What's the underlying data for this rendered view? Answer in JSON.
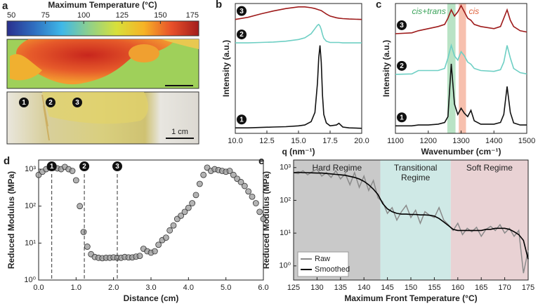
{
  "chart_data": [
    {
      "type": "heatmap",
      "panel": "a",
      "title": "Maximum Temperature (°C)",
      "xlim": [
        50,
        175
      ],
      "xticks": [
        50,
        75,
        100,
        125,
        150,
        175
      ],
      "colormap": [
        "#2a2f8e",
        "#2f6fc0",
        "#3fb8e8",
        "#8fd08a",
        "#d8e03a",
        "#f6b326",
        "#e8502a",
        "#a31d1d"
      ],
      "markers": [
        "1",
        "2",
        "3"
      ],
      "scale_bar_label": "1 cm"
    },
    {
      "type": "line",
      "panel": "b",
      "xlabel": "q (nm⁻¹)",
      "ylabel": "Intensity (a.u.)",
      "xlim": [
        10,
        20
      ],
      "ylim": [
        0,
        3.1
      ],
      "xticks": [
        {
          "value": 10,
          "label": "10.0"
        },
        {
          "value": 12.5,
          "label": "12.5"
        },
        {
          "value": 15,
          "label": "15.0"
        },
        {
          "value": 17.5,
          "label": "17.5"
        },
        {
          "value": 20,
          "label": "20.0"
        }
      ],
      "x": [
        10,
        11,
        12,
        13,
        14,
        15,
        15.5,
        16,
        16.3,
        16.5,
        16.6,
        16.7,
        16.8,
        16.9,
        17,
        17.2,
        17.5,
        18,
        18.2,
        18.5,
        19,
        20
      ],
      "series": [
        {
          "name": "1",
          "color": "#111111",
          "values": [
            0.13,
            0.13,
            0.14,
            0.15,
            0.16,
            0.18,
            0.2,
            0.28,
            0.5,
            1.2,
            1.8,
            2.1,
            1.7,
            0.9,
            0.45,
            0.25,
            0.18,
            0.2,
            0.24,
            0.15,
            0.13,
            0.12
          ]
        },
        {
          "name": "2",
          "color": "#6ecfc4",
          "values": [
            2.16,
            2.16,
            2.17,
            2.18,
            2.2,
            2.24,
            2.28,
            2.38,
            2.5,
            2.58,
            2.6,
            2.56,
            2.48,
            2.36,
            2.27,
            2.2,
            2.17,
            2.17,
            2.17,
            2.16,
            2.16,
            2.16
          ]
        },
        {
          "name": "3",
          "color": "#9e1b1b",
          "values": [
            2.72,
            2.77,
            2.85,
            2.92,
            2.98,
            3.02,
            3.02,
            3.0,
            2.98,
            2.96,
            2.95,
            2.94,
            2.93,
            2.91,
            2.89,
            2.85,
            2.8,
            2.76,
            2.75,
            2.74,
            2.73,
            2.72
          ]
        }
      ]
    },
    {
      "type": "line",
      "panel": "c",
      "xlabel": "Wavenumber (cm⁻¹)",
      "ylabel": "Intensity (a.u.)",
      "xlim": [
        1100,
        1500
      ],
      "ylim": [
        0,
        3.1
      ],
      "xticks": [
        1100,
        1200,
        1300,
        1400,
        1500
      ],
      "bands": [
        {
          "label": "cis+trans",
          "range": [
            1258,
            1283
          ],
          "color": "#a8dcb6",
          "text_color": "#3aa35a"
        },
        {
          "label": "cis",
          "range": [
            1293,
            1315
          ],
          "color": "#f5b09a",
          "text_color": "#e0603a"
        }
      ],
      "x": [
        1100,
        1150,
        1170,
        1200,
        1230,
        1250,
        1260,
        1270,
        1280,
        1290,
        1300,
        1310,
        1320,
        1330,
        1340,
        1360,
        1400,
        1420,
        1430,
        1440,
        1450,
        1460,
        1480,
        1500
      ],
      "series": [
        {
          "name": "1",
          "color": "#111111",
          "values": [
            0.18,
            0.18,
            0.2,
            0.2,
            0.22,
            0.26,
            0.4,
            1.66,
            0.7,
            0.45,
            0.6,
            0.48,
            0.4,
            0.55,
            0.3,
            0.22,
            0.22,
            0.26,
            0.45,
            1.12,
            0.5,
            0.25,
            0.2,
            0.2
          ]
        },
        {
          "name": "2",
          "color": "#6ecfc4",
          "values": [
            1.41,
            1.42,
            1.5,
            1.5,
            1.5,
            1.55,
            1.8,
            2.1,
            1.85,
            1.75,
            1.95,
            1.85,
            1.7,
            1.65,
            1.55,
            1.5,
            1.48,
            1.52,
            1.7,
            2.1,
            1.8,
            1.55,
            1.45,
            1.42
          ]
        },
        {
          "name": "3",
          "color": "#9e1b1b",
          "values": [
            2.38,
            2.4,
            2.45,
            2.5,
            2.55,
            2.6,
            2.75,
            2.95,
            2.8,
            2.9,
            3.05,
            2.9,
            2.75,
            2.7,
            2.6,
            2.55,
            2.5,
            2.55,
            2.75,
            2.95,
            2.7,
            2.55,
            2.45,
            2.42
          ]
        }
      ]
    },
    {
      "type": "scatter",
      "panel": "d",
      "xlabel": "Distance (cm)",
      "ylabel": "Reduced Modulus (MPa)",
      "xlim": [
        0,
        6
      ],
      "ylim": [
        1,
        1770
      ],
      "ylog": true,
      "xticks": [
        {
          "value": 0,
          "label": "0.0"
        },
        {
          "value": 1,
          "label": "1.0"
        },
        {
          "value": 2,
          "label": "2.0"
        },
        {
          "value": 3,
          "label": "3.0"
        },
        {
          "value": 4,
          "label": "4.0"
        },
        {
          "value": 5,
          "label": "5.0"
        },
        {
          "value": 6,
          "label": "6.0"
        }
      ],
      "yticks": [
        {
          "value": 1,
          "label": "10⁰"
        },
        {
          "value": 10,
          "label": "10¹"
        },
        {
          "value": 100,
          "label": "10²"
        },
        {
          "value": 1000,
          "label": "10³"
        }
      ],
      "vlines": [
        {
          "x": 0.35,
          "label": "1"
        },
        {
          "x": 1.22,
          "label": "2"
        },
        {
          "x": 2.1,
          "label": "3"
        }
      ],
      "color": "#9a9a9a",
      "x": [
        0,
        0.1,
        0.2,
        0.3,
        0.4,
        0.5,
        0.6,
        0.7,
        0.8,
        0.9,
        1,
        1.1,
        1.2,
        1.3,
        1.4,
        1.5,
        1.6,
        1.7,
        1.8,
        1.9,
        2,
        2.1,
        2.2,
        2.3,
        2.4,
        2.5,
        2.6,
        2.7,
        2.8,
        2.9,
        3,
        3.1,
        3.2,
        3.3,
        3.4,
        3.5,
        3.6,
        3.7,
        3.8,
        3.9,
        4,
        4.1,
        4.2,
        4.3,
        4.4,
        4.5,
        4.6,
        4.7,
        4.8,
        4.9,
        5,
        5.1,
        5.2,
        5.3,
        5.4,
        5.5,
        5.6,
        5.7,
        5.8,
        5.9,
        6
      ],
      "values": [
        700,
        850,
        1000,
        1100,
        1100,
        1050,
        1000,
        1150,
        1000,
        900,
        500,
        100,
        20,
        8,
        5,
        4.2,
        4,
        3.9,
        4,
        4,
        4.1,
        4,
        4,
        4.2,
        4.1,
        4.1,
        4.3,
        4.5,
        7,
        6,
        5.5,
        6,
        9,
        12,
        14,
        22,
        30,
        45,
        55,
        70,
        90,
        120,
        200,
        400,
        700,
        1100,
        900,
        1000,
        950,
        900,
        850,
        900,
        700,
        550,
        450,
        350,
        250,
        180,
        120,
        70,
        45
      ]
    },
    {
      "type": "line",
      "panel": "e",
      "xlabel": "Maximum Front Temperature (°C)",
      "ylabel": "Reduced Modulus (MPa)",
      "xlim": [
        125,
        175
      ],
      "ylim": [
        0.37,
        1700
      ],
      "ylog": true,
      "xticks": [
        125,
        130,
        135,
        140,
        145,
        150,
        155,
        160,
        165,
        170,
        175
      ],
      "yticks": [
        {
          "value": 1,
          "label": "10⁰"
        },
        {
          "value": 10,
          "label": "10¹"
        },
        {
          "value": 100,
          "label": "10²"
        },
        {
          "value": 1000,
          "label": "10³"
        }
      ],
      "regions": [
        {
          "label": [
            "Hard Regime"
          ],
          "range": [
            125,
            143.5
          ],
          "color": "#c9c9c9"
        },
        {
          "label": [
            "Transitional",
            "Regime"
          ],
          "range": [
            143.5,
            158.5
          ],
          "color": "#cfe9e6"
        },
        {
          "label": [
            "Soft Regime"
          ],
          "range": [
            158.5,
            175
          ],
          "color": "#e9d2d4"
        }
      ],
      "legend": "lower left",
      "x": [
        125,
        126,
        127,
        128,
        129,
        130,
        131,
        132,
        133,
        134,
        135,
        136,
        137,
        138,
        139,
        140,
        141,
        142,
        143,
        144,
        145,
        146,
        147,
        148,
        149,
        150,
        151,
        152,
        153,
        154,
        155,
        156,
        157,
        158,
        159,
        160,
        161,
        162,
        163,
        164,
        165,
        166,
        167,
        168,
        169,
        170,
        171,
        172,
        173,
        174,
        175
      ],
      "series": [
        {
          "name": "Raw",
          "color": "#8a8a8a",
          "values": [
            700,
            650,
            800,
            600,
            750,
            900,
            550,
            700,
            500,
            800,
            450,
            650,
            300,
            700,
            250,
            550,
            200,
            400,
            120,
            90,
            40,
            60,
            25,
            45,
            70,
            30,
            50,
            20,
            45,
            35,
            30,
            60,
            25,
            18,
            12,
            20,
            9,
            14,
            11,
            15,
            8,
            13,
            16,
            12,
            18,
            10,
            14,
            8,
            12,
            0.6,
            3
          ]
        },
        {
          "name": "Smoothed",
          "color": "#000000",
          "values": [
            700,
            720,
            700,
            700,
            690,
            680,
            680,
            660,
            640,
            620,
            600,
            580,
            540,
            500,
            450,
            380,
            300,
            220,
            150,
            80,
            55,
            45,
            40,
            38,
            38,
            37,
            37,
            36,
            36,
            35,
            33,
            28,
            22,
            17,
            13,
            12,
            12,
            12,
            12,
            12,
            12,
            13,
            13,
            14,
            14,
            14,
            13,
            11,
            9,
            6,
            1.6
          ]
        }
      ]
    }
  ]
}
